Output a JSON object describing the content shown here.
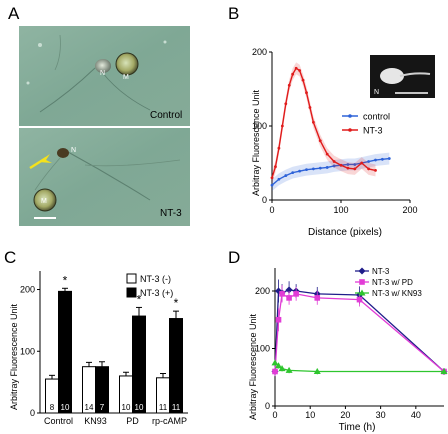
{
  "panels": {
    "A": {
      "letter": "A",
      "top_image": {
        "cell_labels": [
          "N",
          "M"
        ],
        "condition": "Control"
      },
      "bottom_image": {
        "cell_labels": [
          "N",
          "M"
        ],
        "condition": "NT-3"
      }
    }
  },
  "colors": {
    "control_blue": "#2d62d8",
    "nt3_red": "#e01b1b",
    "pd_magenta": "#e23cd6",
    "kn93_green": "#2ec52e",
    "nt3_navy": "#1f1d8a",
    "bar_black": "#000000"
  },
  "chart_data": [
    {
      "panel": "B",
      "type": "line",
      "ylabel": "Arbitray Fluorescence Unit",
      "xlabel": "Distance (pixels)",
      "xlim": [
        0,
        200
      ],
      "ylim": [
        0,
        200
      ],
      "xticks": [
        0,
        100,
        200
      ],
      "yticks": [
        0,
        100,
        200
      ],
      "inset_label": "N",
      "series": [
        {
          "name": "control",
          "color": "#2d62d8",
          "x": [
            0,
            10,
            20,
            30,
            40,
            50,
            60,
            70,
            80,
            90,
            100,
            110,
            120,
            130,
            140,
            150,
            160,
            170
          ],
          "y": [
            20,
            28,
            33,
            37,
            39,
            41,
            42,
            43,
            44,
            46,
            47,
            48,
            48,
            50,
            52,
            54,
            55,
            56
          ]
        },
        {
          "name": "NT-3",
          "color": "#e01b1b",
          "x": [
            0,
            5,
            10,
            15,
            20,
            25,
            30,
            35,
            40,
            45,
            50,
            55,
            60,
            70,
            80,
            90,
            100,
            110,
            120,
            130,
            140,
            150
          ],
          "y": [
            30,
            45,
            70,
            100,
            130,
            155,
            170,
            178,
            175,
            162,
            145,
            125,
            105,
            80,
            62,
            52,
            47,
            43,
            42,
            50,
            42,
            40
          ]
        }
      ]
    },
    {
      "panel": "C",
      "type": "bar",
      "ylabel": "Arbitray Fluorescence Unit",
      "ylim": [
        0,
        230
      ],
      "yticks": [
        0,
        100,
        200
      ],
      "categories": [
        "Control",
        "KN93",
        "PD",
        "rp-cAMP"
      ],
      "legend": [
        "NT-3 (-)",
        "NT-3 (+)"
      ],
      "series": [
        {
          "name": "NT-3 (-)",
          "values": [
            55,
            75,
            60,
            57
          ],
          "errors": [
            6,
            7,
            6,
            7
          ],
          "n": [
            "8",
            "14",
            "10",
            "11"
          ]
        },
        {
          "name": "NT-3 (+)",
          "values": [
            197,
            75,
            157,
            153
          ],
          "errors": [
            5,
            8,
            14,
            12
          ],
          "n": [
            "10",
            "7",
            "10",
            "11"
          ]
        }
      ],
      "significance": [
        "*",
        "",
        "*",
        "*"
      ]
    },
    {
      "panel": "D",
      "type": "line",
      "ylabel": "Arbitray Fluorescence Unit",
      "xlabel": "Time (h)",
      "xlim": [
        0,
        48
      ],
      "ylim": [
        0,
        240
      ],
      "xticks": [
        0,
        10,
        20,
        30,
        40
      ],
      "yticks": [
        0,
        100,
        200
      ],
      "series": [
        {
          "name": "NT-3",
          "color": "#1f1d8a",
          "marker": "diamond",
          "x": [
            0,
            1,
            2,
            4,
            6,
            12,
            24,
            48
          ],
          "y": [
            60,
            200,
            197,
            202,
            200,
            195,
            193,
            60
          ],
          "err": [
            8,
            20,
            15,
            15,
            12,
            12,
            15,
            5
          ]
        },
        {
          "name": "NT-3 w/ PD",
          "color": "#e23cd6",
          "marker": "square",
          "x": [
            0,
            1,
            2,
            4,
            6,
            12,
            24,
            48
          ],
          "y": [
            60,
            150,
            195,
            188,
            195,
            188,
            185,
            60
          ],
          "err": [
            8,
            20,
            15,
            12,
            12,
            12,
            12,
            5
          ]
        },
        {
          "name": "NT-3 w/ KN93",
          "color": "#2ec52e",
          "marker": "triangle",
          "x": [
            0,
            1,
            2,
            4,
            12,
            48
          ],
          "y": [
            75,
            70,
            65,
            62,
            60,
            60
          ],
          "err": [
            5,
            5,
            5,
            5,
            5,
            5
          ]
        }
      ]
    }
  ],
  "panel_letters": {
    "B": "B",
    "C": "C",
    "D": "D"
  }
}
